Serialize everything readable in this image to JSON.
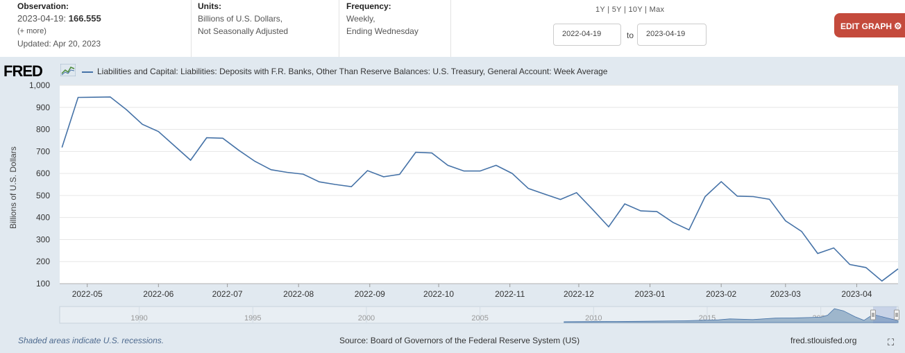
{
  "header": {
    "observation_label": "Observation:",
    "observation_date": "2023-04-19:",
    "observation_value": "166.555",
    "more_link": "(+ more)",
    "updated": "Updated: Apr 20, 2023",
    "units_label": "Units:",
    "units_line1": "Billions of U.S. Dollars,",
    "units_line2": "Not Seasonally Adjusted",
    "frequency_label": "Frequency:",
    "frequency_line1": "Weekly,",
    "frequency_line2": "Ending Wednesday",
    "range_1y": "1Y",
    "range_5y": "5Y",
    "range_10y": "10Y",
    "range_max": "Max",
    "range_sep": "|",
    "date_from": "2022-04-19",
    "date_to_label": "to",
    "date_to": "2023-04-19",
    "edit_graph": "EDIT GRAPH",
    "gear_icon": "gear-icon"
  },
  "brand": {
    "logo_text": "FRED"
  },
  "legend": {
    "series_name": "Liabilities and Capital: Liabilities: Deposits with F.R. Banks, Other Than Reserve Balances: U.S. Treasury, General Account: Week Average"
  },
  "footer": {
    "recession_note": "Shaded areas indicate U.S. recessions.",
    "source": "Source: Board of Governors of the Federal Reserve System (US)",
    "url": "fred.stlouisfed.org"
  },
  "colors": {
    "line": "#4572a7",
    "background": "#e1e9f0",
    "plot": "#ffffff",
    "edit_button": "#c44a3c"
  },
  "chart_data": {
    "type": "line",
    "title": "",
    "xlabel": "",
    "ylabel": "Billions of U.S. Dollars",
    "ylim": [
      100,
      1000
    ],
    "yticks": [
      100,
      200,
      300,
      400,
      500,
      600,
      700,
      800,
      900,
      1000
    ],
    "ytick_labels": [
      "100",
      "200",
      "300",
      "400",
      "500",
      "600",
      "700",
      "800",
      "900",
      "1,000"
    ],
    "xlim": [
      "2022-04-19",
      "2023-04-19"
    ],
    "xticks": [
      "2022-05-01",
      "2022-06-01",
      "2022-07-01",
      "2022-08-01",
      "2022-09-01",
      "2022-10-01",
      "2022-11-01",
      "2022-12-01",
      "2023-01-01",
      "2023-02-01",
      "2023-03-01",
      "2023-04-01"
    ],
    "xtick_labels": [
      "2022-05",
      "2022-06",
      "2022-07",
      "2022-08",
      "2022-09",
      "2022-10",
      "2022-11",
      "2022-12",
      "2023-01",
      "2023-02",
      "2023-03",
      "2023-04"
    ],
    "grid": true,
    "series": [
      {
        "name": "Liabilities and Capital: Liabilities: Deposits with F.R. Banks, Other Than Reserve Balances: U.S. Treasury, General Account: Week Average",
        "x": [
          "2022-04-20",
          "2022-04-27",
          "2022-05-04",
          "2022-05-11",
          "2022-05-18",
          "2022-05-25",
          "2022-06-01",
          "2022-06-08",
          "2022-06-15",
          "2022-06-22",
          "2022-06-29",
          "2022-07-06",
          "2022-07-13",
          "2022-07-20",
          "2022-07-27",
          "2022-08-03",
          "2022-08-10",
          "2022-08-17",
          "2022-08-24",
          "2022-08-31",
          "2022-09-07",
          "2022-09-14",
          "2022-09-21",
          "2022-09-28",
          "2022-10-05",
          "2022-10-12",
          "2022-10-19",
          "2022-10-26",
          "2022-11-02",
          "2022-11-09",
          "2022-11-16",
          "2022-11-23",
          "2022-11-30",
          "2022-12-07",
          "2022-12-14",
          "2022-12-21",
          "2022-12-28",
          "2023-01-04",
          "2023-01-11",
          "2023-01-18",
          "2023-01-25",
          "2023-02-01",
          "2023-02-08",
          "2023-02-15",
          "2023-02-22",
          "2023-03-01",
          "2023-03-08",
          "2023-03-15",
          "2023-03-22",
          "2023-03-29",
          "2023-04-05",
          "2023-04-12",
          "2023-04-19"
        ],
        "values": [
          718,
          945,
          946,
          947,
          890,
          823,
          790,
          725,
          660,
          762,
          760,
          705,
          655,
          617,
          605,
          597,
          562,
          550,
          540,
          613,
          585,
          596,
          696,
          693,
          637,
          611,
          611,
          637,
          600,
          532,
          507,
          482,
          513,
          437,
          358,
          462,
          430,
          427,
          378,
          344,
          495,
          563,
          497,
          495,
          483,
          385,
          337,
          237,
          262,
          187,
          173,
          112,
          167
        ]
      }
    ],
    "navigator": {
      "tick_labels": [
        "1990",
        "1995",
        "2000",
        "2005",
        "2010",
        "2015",
        "2020"
      ]
    }
  }
}
